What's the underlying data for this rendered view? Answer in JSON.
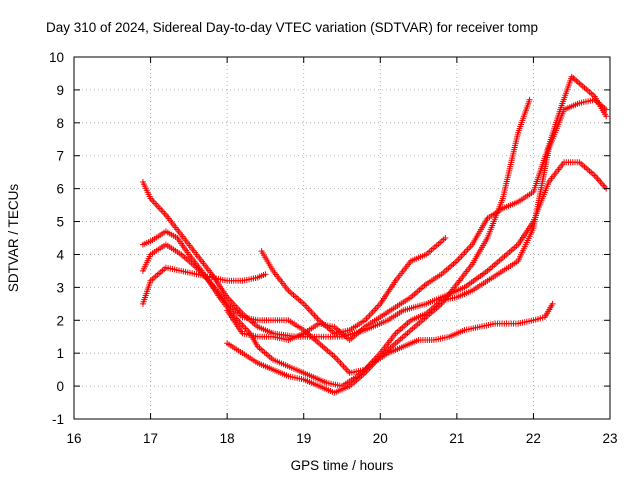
{
  "chart_data": {
    "type": "scatter",
    "title": "Day 310 of 2024, Sidereal Day-to-day VTEC variation (SDTVAR) for receiver tomp",
    "xlabel": "GPS time / hours",
    "ylabel": "SDTVAR / TECUs",
    "xlim": [
      16,
      23
    ],
    "ylim": [
      -1,
      10
    ],
    "xticks": [
      "16",
      "17",
      "18",
      "19",
      "20",
      "21",
      "22",
      "23"
    ],
    "yticks": [
      "-1",
      "0",
      "1",
      "2",
      "3",
      "4",
      "5",
      "6",
      "7",
      "8",
      "9",
      "10"
    ],
    "grid": true,
    "marker": "+",
    "color": "#ff0000",
    "series": [
      {
        "points": [
          [
            16.9,
            6.2
          ],
          [
            17.0,
            5.7
          ],
          [
            17.2,
            5.2
          ],
          [
            17.4,
            4.6
          ],
          [
            17.6,
            4.0
          ],
          [
            17.8,
            3.4
          ],
          [
            18.0,
            2.7
          ],
          [
            18.2,
            2.2
          ],
          [
            18.4,
            1.8
          ],
          [
            18.6,
            1.6
          ],
          [
            18.9,
            1.5
          ],
          [
            19.2,
            1.5
          ],
          [
            19.5,
            1.5
          ],
          [
            19.8,
            1.7
          ],
          [
            20.1,
            2.0
          ],
          [
            20.3,
            2.3
          ],
          [
            20.6,
            2.5
          ],
          [
            20.9,
            2.8
          ],
          [
            21.1,
            3.0
          ],
          [
            21.4,
            3.5
          ],
          [
            21.6,
            3.9
          ],
          [
            21.8,
            4.3
          ],
          [
            22.0,
            5.0
          ],
          [
            22.2,
            6.2
          ],
          [
            22.4,
            6.8
          ],
          [
            22.6,
            6.8
          ],
          [
            22.8,
            6.4
          ],
          [
            22.95,
            6.0
          ]
        ]
      },
      {
        "points": [
          [
            16.9,
            4.3
          ],
          [
            17.0,
            4.4
          ],
          [
            17.2,
            4.7
          ],
          [
            17.35,
            4.5
          ],
          [
            17.5,
            4.0
          ],
          [
            17.7,
            3.4
          ],
          [
            17.9,
            2.7
          ],
          [
            18.1,
            2.1
          ],
          [
            18.3,
            1.6
          ],
          [
            18.4,
            1.2
          ],
          [
            18.6,
            0.8
          ],
          [
            18.9,
            0.5
          ],
          [
            19.1,
            0.3
          ],
          [
            19.3,
            0.1
          ],
          [
            19.5,
            0.0
          ],
          [
            19.7,
            0.3
          ],
          [
            19.9,
            0.7
          ],
          [
            20.1,
            1.0
          ],
          [
            20.3,
            1.2
          ],
          [
            20.5,
            1.4
          ],
          [
            20.7,
            1.4
          ],
          [
            20.9,
            1.5
          ],
          [
            21.1,
            1.7
          ],
          [
            21.3,
            1.8
          ],
          [
            21.5,
            1.9
          ],
          [
            21.8,
            1.9
          ],
          [
            22.0,
            2.0
          ],
          [
            22.15,
            2.1
          ],
          [
            22.25,
            2.5
          ]
        ]
      },
      {
        "points": [
          [
            16.9,
            3.5
          ],
          [
            17.0,
            4.0
          ],
          [
            17.2,
            4.3
          ],
          [
            17.4,
            4.0
          ],
          [
            17.6,
            3.6
          ],
          [
            17.8,
            3.1
          ],
          [
            18.0,
            2.5
          ],
          [
            18.2,
            2.1
          ],
          [
            18.4,
            2.0
          ],
          [
            18.6,
            2.0
          ],
          [
            18.8,
            2.0
          ],
          [
            19.0,
            1.7
          ],
          [
            19.2,
            1.3
          ],
          [
            19.4,
            0.9
          ],
          [
            19.6,
            0.4
          ],
          [
            19.8,
            0.5
          ],
          [
            20.0,
            1.0
          ],
          [
            20.2,
            1.6
          ],
          [
            20.4,
            2.0
          ],
          [
            20.6,
            2.2
          ],
          [
            20.8,
            2.6
          ],
          [
            21.0,
            2.7
          ],
          [
            21.2,
            2.9
          ],
          [
            21.4,
            3.2
          ],
          [
            21.6,
            3.5
          ],
          [
            21.8,
            3.8
          ],
          [
            22.0,
            4.8
          ],
          [
            22.2,
            7.2
          ],
          [
            22.4,
            8.4
          ],
          [
            22.6,
            8.6
          ],
          [
            22.8,
            8.7
          ],
          [
            22.95,
            8.4
          ]
        ]
      },
      {
        "points": [
          [
            16.9,
            2.5
          ],
          [
            17.0,
            3.2
          ],
          [
            17.2,
            3.6
          ],
          [
            17.4,
            3.5
          ],
          [
            17.6,
            3.4
          ],
          [
            17.8,
            3.3
          ],
          [
            18.0,
            3.2
          ],
          [
            18.2,
            3.2
          ],
          [
            18.4,
            3.3
          ],
          [
            18.5,
            3.4
          ]
        ]
      },
      {
        "points": [
          [
            18.45,
            4.1
          ],
          [
            18.6,
            3.5
          ],
          [
            18.8,
            2.9
          ],
          [
            19.0,
            2.5
          ],
          [
            19.2,
            2.0
          ],
          [
            19.4,
            1.6
          ],
          [
            19.6,
            1.7
          ],
          [
            19.8,
            2.0
          ],
          [
            20.0,
            2.5
          ],
          [
            20.2,
            3.2
          ],
          [
            20.4,
            3.8
          ],
          [
            20.6,
            4.0
          ],
          [
            20.85,
            4.5
          ]
        ]
      },
      {
        "points": [
          [
            18.0,
            1.3
          ],
          [
            18.2,
            1.0
          ],
          [
            18.4,
            0.7
          ],
          [
            18.6,
            0.5
          ],
          [
            18.8,
            0.3
          ],
          [
            19.0,
            0.2
          ],
          [
            19.2,
            0.0
          ],
          [
            19.4,
            -0.2
          ],
          [
            19.6,
            0.0
          ],
          [
            19.8,
            0.4
          ],
          [
            20.0,
            0.9
          ],
          [
            20.2,
            1.3
          ],
          [
            20.4,
            1.7
          ],
          [
            20.6,
            2.1
          ],
          [
            20.8,
            2.5
          ],
          [
            21.0,
            3.1
          ],
          [
            21.2,
            3.7
          ],
          [
            21.4,
            4.5
          ],
          [
            21.6,
            5.7
          ],
          [
            21.8,
            7.7
          ],
          [
            21.95,
            8.7
          ]
        ]
      },
      {
        "points": [
          [
            18.0,
            2.3
          ],
          [
            18.2,
            1.6
          ],
          [
            18.4,
            1.5
          ],
          [
            18.6,
            1.5
          ],
          [
            18.8,
            1.4
          ],
          [
            19.0,
            1.6
          ],
          [
            19.2,
            1.9
          ],
          [
            19.4,
            1.8
          ],
          [
            19.6,
            1.4
          ],
          [
            19.8,
            1.8
          ],
          [
            20.0,
            2.1
          ],
          [
            20.2,
            2.4
          ],
          [
            20.4,
            2.7
          ],
          [
            20.6,
            3.1
          ],
          [
            20.8,
            3.4
          ],
          [
            21.0,
            3.8
          ],
          [
            21.2,
            4.3
          ],
          [
            21.4,
            5.1
          ],
          [
            21.6,
            5.4
          ],
          [
            21.8,
            5.6
          ],
          [
            22.0,
            5.9
          ],
          [
            22.2,
            7.3
          ],
          [
            22.35,
            8.4
          ],
          [
            22.5,
            9.4
          ],
          [
            22.6,
            9.2
          ],
          [
            22.8,
            8.8
          ],
          [
            22.95,
            8.2
          ]
        ]
      }
    ]
  }
}
